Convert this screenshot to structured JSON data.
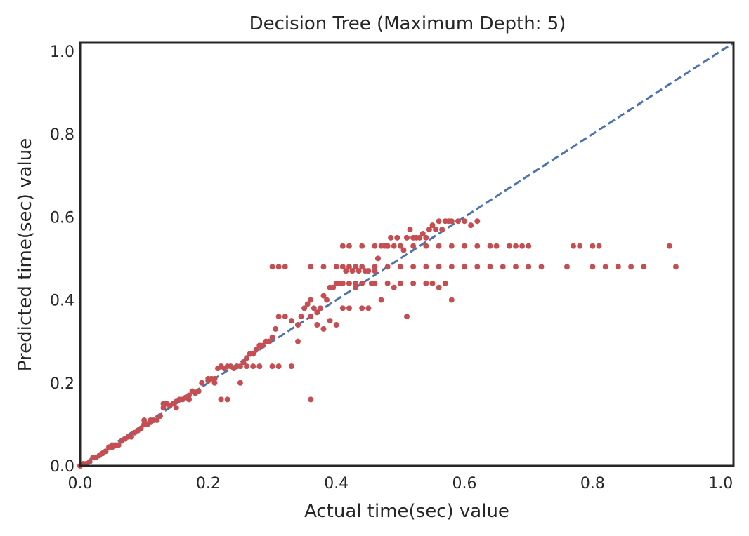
{
  "chart_data": {
    "type": "scatter",
    "title": "Decision Tree (Maximum Depth: 5)",
    "xlabel": "Actual time(sec) value",
    "ylabel": "Predicted time(sec) value",
    "xlim": [
      0.0,
      1.02
    ],
    "ylim": [
      0.0,
      1.02
    ],
    "xticks": [
      "0.0",
      "0.2",
      "0.4",
      "0.6",
      "0.8",
      "1.0"
    ],
    "yticks": [
      "0.0",
      "0.2",
      "0.4",
      "0.6",
      "0.8",
      "1.0"
    ],
    "grid": false,
    "reference_line": {
      "style": "dashed",
      "color": "#4c72b0",
      "x": [
        0.0,
        1.02
      ],
      "y": [
        0.0,
        1.02
      ]
    },
    "marker_color": "#c44e52",
    "series": [
      {
        "points": [
          [
            0.0,
            0.0
          ],
          [
            0.005,
            0.005
          ],
          [
            0.01,
            0.005
          ],
          [
            0.015,
            0.01
          ],
          [
            0.02,
            0.02
          ],
          [
            0.025,
            0.02
          ],
          [
            0.03,
            0.025
          ],
          [
            0.035,
            0.03
          ],
          [
            0.04,
            0.035
          ],
          [
            0.045,
            0.045
          ],
          [
            0.05,
            0.045
          ],
          [
            0.055,
            0.05
          ],
          [
            0.06,
            0.05
          ],
          [
            0.065,
            0.06
          ],
          [
            0.07,
            0.065
          ],
          [
            0.075,
            0.07
          ],
          [
            0.08,
            0.07
          ],
          [
            0.085,
            0.08
          ],
          [
            0.09,
            0.085
          ],
          [
            0.095,
            0.09
          ],
          [
            0.1,
            0.1
          ],
          [
            0.105,
            0.1
          ],
          [
            0.11,
            0.105
          ],
          [
            0.115,
            0.11
          ],
          [
            0.12,
            0.11
          ],
          [
            0.125,
            0.12
          ],
          [
            0.13,
            0.14
          ],
          [
            0.135,
            0.15
          ],
          [
            0.14,
            0.145
          ],
          [
            0.145,
            0.15
          ],
          [
            0.15,
            0.155
          ],
          [
            0.155,
            0.16
          ],
          [
            0.16,
            0.16
          ],
          [
            0.165,
            0.165
          ],
          [
            0.17,
            0.17
          ],
          [
            0.175,
            0.18
          ],
          [
            0.18,
            0.175
          ],
          [
            0.185,
            0.18
          ],
          [
            0.19,
            0.2
          ],
          [
            0.2,
            0.205
          ],
          [
            0.205,
            0.21
          ],
          [
            0.21,
            0.21
          ],
          [
            0.215,
            0.235
          ],
          [
            0.22,
            0.24
          ],
          [
            0.225,
            0.235
          ],
          [
            0.23,
            0.24
          ],
          [
            0.235,
            0.24
          ],
          [
            0.24,
            0.235
          ],
          [
            0.245,
            0.24
          ],
          [
            0.25,
            0.24
          ],
          [
            0.255,
            0.25
          ],
          [
            0.26,
            0.26
          ],
          [
            0.265,
            0.27
          ],
          [
            0.27,
            0.27
          ],
          [
            0.275,
            0.28
          ],
          [
            0.28,
            0.29
          ],
          [
            0.285,
            0.29
          ],
          [
            0.29,
            0.3
          ],
          [
            0.295,
            0.3
          ],
          [
            0.3,
            0.31
          ],
          [
            0.305,
            0.33
          ],
          [
            0.31,
            0.36
          ],
          [
            0.32,
            0.36
          ],
          [
            0.33,
            0.35
          ],
          [
            0.34,
            0.34
          ],
          [
            0.345,
            0.36
          ],
          [
            0.35,
            0.38
          ],
          [
            0.355,
            0.39
          ],
          [
            0.36,
            0.4
          ],
          [
            0.365,
            0.38
          ],
          [
            0.37,
            0.37
          ],
          [
            0.375,
            0.38
          ],
          [
            0.38,
            0.41
          ],
          [
            0.385,
            0.4
          ],
          [
            0.39,
            0.43
          ],
          [
            0.395,
            0.43
          ],
          [
            0.4,
            0.44
          ],
          [
            0.405,
            0.44
          ],
          [
            0.41,
            0.44
          ],
          [
            0.415,
            0.47
          ],
          [
            0.42,
            0.44
          ],
          [
            0.425,
            0.47
          ],
          [
            0.43,
            0.44
          ],
          [
            0.435,
            0.47
          ],
          [
            0.44,
            0.44
          ],
          [
            0.445,
            0.47
          ],
          [
            0.45,
            0.47
          ],
          [
            0.455,
            0.44
          ],
          [
            0.46,
            0.47
          ],
          [
            0.465,
            0.5
          ],
          [
            0.47,
            0.53
          ],
          [
            0.475,
            0.53
          ],
          [
            0.48,
            0.53
          ],
          [
            0.485,
            0.55
          ],
          [
            0.49,
            0.53
          ],
          [
            0.495,
            0.55
          ],
          [
            0.5,
            0.53
          ],
          [
            0.505,
            0.52
          ],
          [
            0.51,
            0.55
          ],
          [
            0.515,
            0.57
          ],
          [
            0.52,
            0.55
          ],
          [
            0.525,
            0.55
          ],
          [
            0.53,
            0.55
          ],
          [
            0.535,
            0.56
          ],
          [
            0.54,
            0.55
          ],
          [
            0.545,
            0.57
          ],
          [
            0.55,
            0.58
          ],
          [
            0.555,
            0.57
          ],
          [
            0.56,
            0.59
          ],
          [
            0.565,
            0.57
          ],
          [
            0.57,
            0.59
          ],
          [
            0.575,
            0.59
          ],
          [
            0.58,
            0.59
          ],
          [
            0.59,
            0.59
          ],
          [
            0.6,
            0.59
          ],
          [
            0.61,
            0.58
          ],
          [
            0.62,
            0.59
          ],
          [
            0.05,
            0.05
          ],
          [
            0.1,
            0.11
          ],
          [
            0.11,
            0.11
          ],
          [
            0.13,
            0.15
          ],
          [
            0.15,
            0.14
          ],
          [
            0.17,
            0.16
          ],
          [
            0.2,
            0.21
          ],
          [
            0.22,
            0.24
          ],
          [
            0.26,
            0.24
          ],
          [
            0.27,
            0.24
          ],
          [
            0.28,
            0.24
          ],
          [
            0.3,
            0.24
          ],
          [
            0.31,
            0.24
          ],
          [
            0.33,
            0.24
          ],
          [
            0.3,
            0.48
          ],
          [
            0.31,
            0.48
          ],
          [
            0.32,
            0.48
          ],
          [
            0.36,
            0.16
          ],
          [
            0.22,
            0.16
          ],
          [
            0.23,
            0.16
          ],
          [
            0.25,
            0.2
          ],
          [
            0.21,
            0.2
          ],
          [
            0.34,
            0.3
          ],
          [
            0.36,
            0.36
          ],
          [
            0.37,
            0.34
          ],
          [
            0.38,
            0.33
          ],
          [
            0.39,
            0.35
          ],
          [
            0.4,
            0.34
          ],
          [
            0.41,
            0.38
          ],
          [
            0.42,
            0.38
          ],
          [
            0.44,
            0.38
          ],
          [
            0.45,
            0.38
          ],
          [
            0.43,
            0.43
          ],
          [
            0.46,
            0.44
          ],
          [
            0.48,
            0.44
          ],
          [
            0.5,
            0.44
          ],
          [
            0.52,
            0.44
          ],
          [
            0.54,
            0.44
          ],
          [
            0.55,
            0.44
          ],
          [
            0.47,
            0.4
          ],
          [
            0.51,
            0.36
          ],
          [
            0.56,
            0.43
          ],
          [
            0.58,
            0.4
          ],
          [
            0.49,
            0.43
          ],
          [
            0.57,
            0.44
          ],
          [
            0.36,
            0.48
          ],
          [
            0.38,
            0.48
          ],
          [
            0.4,
            0.48
          ],
          [
            0.41,
            0.48
          ],
          [
            0.42,
            0.48
          ],
          [
            0.43,
            0.48
          ],
          [
            0.44,
            0.48
          ],
          [
            0.46,
            0.48
          ],
          [
            0.48,
            0.48
          ],
          [
            0.5,
            0.48
          ],
          [
            0.52,
            0.48
          ],
          [
            0.54,
            0.48
          ],
          [
            0.56,
            0.48
          ],
          [
            0.58,
            0.48
          ],
          [
            0.6,
            0.48
          ],
          [
            0.62,
            0.48
          ],
          [
            0.64,
            0.48
          ],
          [
            0.66,
            0.48
          ],
          [
            0.68,
            0.48
          ],
          [
            0.7,
            0.48
          ],
          [
            0.72,
            0.48
          ],
          [
            0.76,
            0.48
          ],
          [
            0.8,
            0.48
          ],
          [
            0.82,
            0.48
          ],
          [
            0.84,
            0.48
          ],
          [
            0.86,
            0.48
          ],
          [
            0.88,
            0.48
          ],
          [
            0.93,
            0.48
          ],
          [
            0.41,
            0.53
          ],
          [
            0.42,
            0.53
          ],
          [
            0.44,
            0.53
          ],
          [
            0.46,
            0.53
          ],
          [
            0.48,
            0.53
          ],
          [
            0.5,
            0.53
          ],
          [
            0.52,
            0.53
          ],
          [
            0.54,
            0.53
          ],
          [
            0.56,
            0.53
          ],
          [
            0.58,
            0.53
          ],
          [
            0.6,
            0.53
          ],
          [
            0.62,
            0.53
          ],
          [
            0.64,
            0.53
          ],
          [
            0.65,
            0.53
          ],
          [
            0.67,
            0.53
          ],
          [
            0.68,
            0.53
          ],
          [
            0.69,
            0.53
          ],
          [
            0.7,
            0.53
          ],
          [
            0.77,
            0.53
          ],
          [
            0.78,
            0.53
          ],
          [
            0.8,
            0.53
          ],
          [
            0.81,
            0.53
          ],
          [
            0.92,
            0.53
          ]
        ]
      }
    ]
  }
}
